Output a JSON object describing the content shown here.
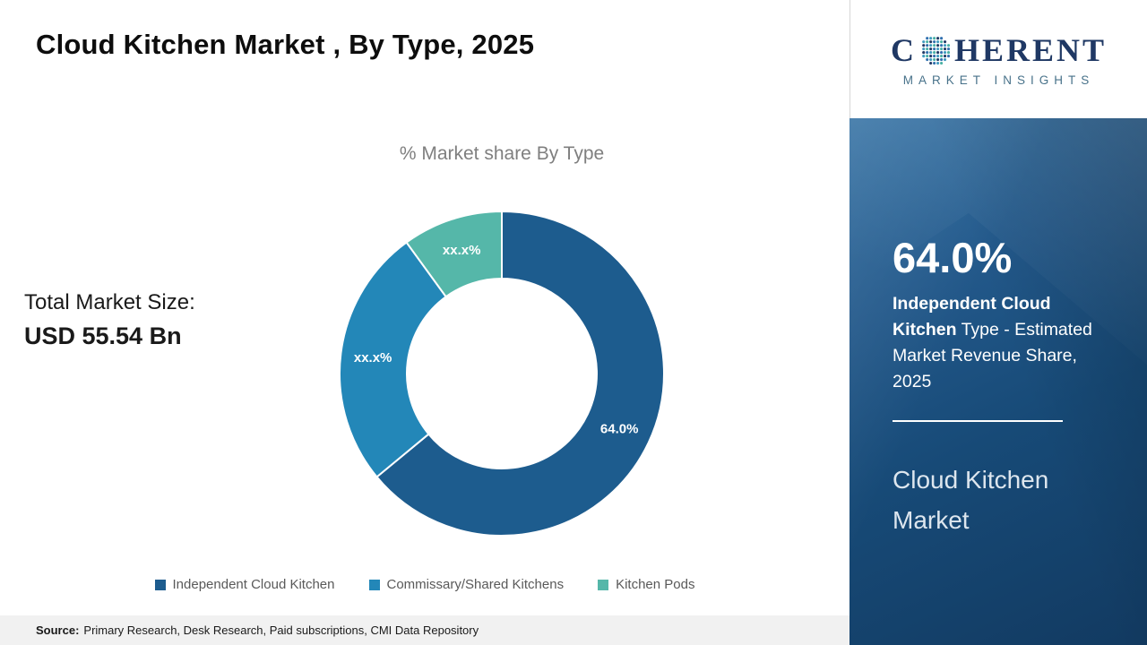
{
  "title": "Cloud Kitchen Market , By Type, 2025",
  "chart_data": {
    "type": "pie",
    "variant": "donut",
    "title": "% Market share By Type",
    "legend_position": "bottom",
    "slices": [
      {
        "label": "Independent Cloud Kitchen",
        "value": 64.0,
        "display": "64.0%",
        "color": "#1d5c8e"
      },
      {
        "label": "Commissary/Shared Kitchens",
        "value": 26.0,
        "display": "xx.x%",
        "color": "#2387b8"
      },
      {
        "label": "Kitchen Pods",
        "value": 10.0,
        "display": "xx.x%",
        "color": "#55b7a9"
      }
    ]
  },
  "market_size": {
    "label": "Total Market Size:",
    "value": "USD 55.54 Bn"
  },
  "footer": {
    "source_label": "Source:",
    "source_text": "Primary Research, Desk Research, Paid subscriptions, CMI Data Repository"
  },
  "logo": {
    "word_pre": "C",
    "word_post": "HERENT",
    "subtitle": "MARKET INSIGHTS"
  },
  "panel": {
    "stat": "64.0%",
    "desc_bold": "Independent Cloud Kitchen",
    "desc_rest": " Type - Estimated Market Revenue Share, 2025",
    "title": "Cloud Kitchen Market"
  }
}
